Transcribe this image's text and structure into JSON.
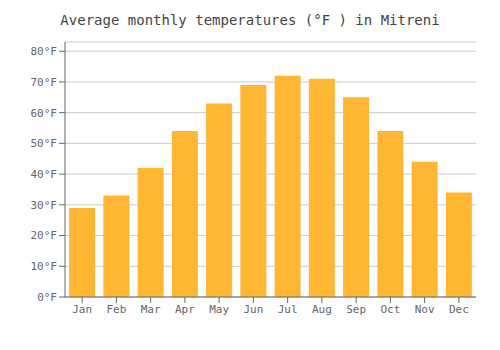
{
  "chart_data": {
    "type": "bar",
    "title": "Average monthly temperatures (°F ) in Mitreni",
    "categories": [
      "Jan",
      "Feb",
      "Mar",
      "Apr",
      "May",
      "Jun",
      "Jul",
      "Aug",
      "Sep",
      "Oct",
      "Nov",
      "Dec"
    ],
    "values": [
      29,
      33,
      42,
      54,
      63,
      69,
      72,
      71,
      65,
      54,
      44,
      34
    ],
    "color": "#FFB733",
    "ylim": [
      0,
      83
    ],
    "yticks": [
      {
        "value": 0,
        "label": "0°F"
      },
      {
        "value": 10,
        "label": "10°F"
      },
      {
        "value": 20,
        "label": "20°F"
      },
      {
        "value": 30,
        "label": "30°F"
      },
      {
        "value": 40,
        "label": "40°F"
      },
      {
        "value": 50,
        "label": "50°F"
      },
      {
        "value": 60,
        "label": "60°F"
      },
      {
        "value": 70,
        "label": "70°F"
      },
      {
        "value": 80,
        "label": "80°F"
      }
    ],
    "grid": true
  }
}
